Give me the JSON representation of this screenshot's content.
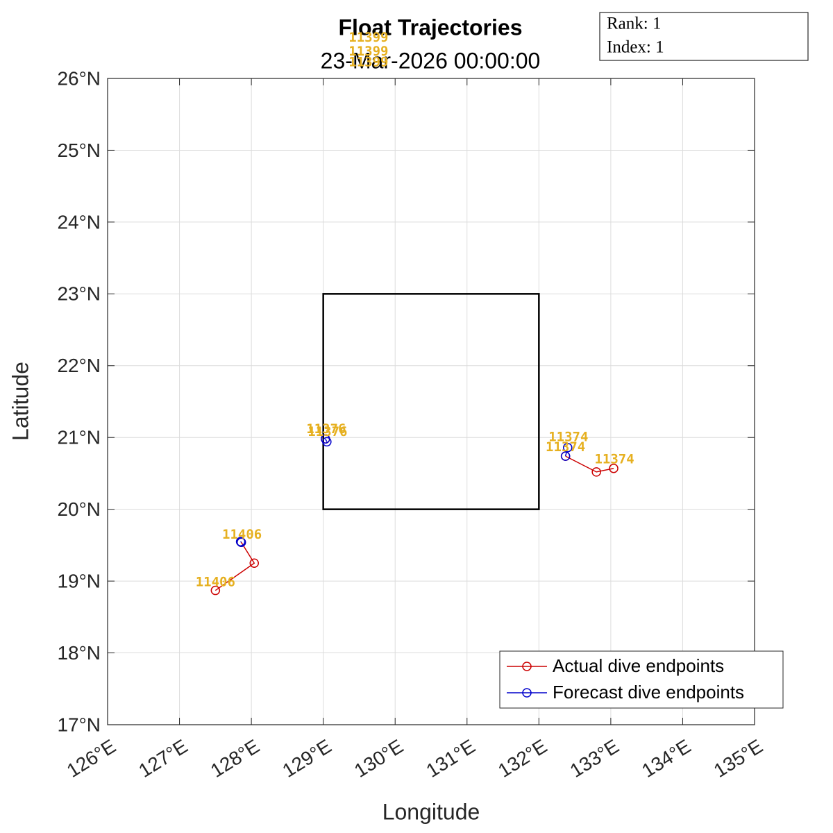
{
  "chart_data": {
    "type": "scatter",
    "title": "Float Trajectories",
    "subtitle": "23-Mar-2026 00:00:00",
    "x_label": "Longitude",
    "y_label": "Latitude",
    "xlim": [
      126,
      135
    ],
    "ylim": [
      17,
      26
    ],
    "xticks": [
      {
        "value": 126,
        "label": "126°E"
      },
      {
        "value": 127,
        "label": "127°E"
      },
      {
        "value": 128,
        "label": "128°E"
      },
      {
        "value": 129,
        "label": "129°E"
      },
      {
        "value": 130,
        "label": "130°E"
      },
      {
        "value": 131,
        "label": "131°E"
      },
      {
        "value": 132,
        "label": "132°E"
      },
      {
        "value": 133,
        "label": "133°E"
      },
      {
        "value": 134,
        "label": "134°E"
      },
      {
        "value": 135,
        "label": "135°E"
      }
    ],
    "yticks": [
      {
        "value": 17,
        "label": "17°N"
      },
      {
        "value": 18,
        "label": "18°N"
      },
      {
        "value": 19,
        "label": "19°N"
      },
      {
        "value": 20,
        "label": "20°N"
      },
      {
        "value": 21,
        "label": "21°N"
      },
      {
        "value": 22,
        "label": "22°N"
      },
      {
        "value": 23,
        "label": "23°N"
      },
      {
        "value": 24,
        "label": "24°N"
      },
      {
        "value": 25,
        "label": "25°N"
      },
      {
        "value": 26,
        "label": "26°N"
      }
    ],
    "grid": true,
    "legend_position": "southeast",
    "series": [
      {
        "name": "Actual dive endpoints",
        "color": "#cc0000",
        "x": [
          127.86,
          128.04,
          127.5,
          null,
          129.03,
          null,
          133.04,
          132.8,
          132.37
        ],
        "values": [
          19.54,
          19.25,
          18.87,
          null,
          20.98,
          null,
          20.57,
          20.52,
          20.74
        ]
      },
      {
        "name": "Forecast dive endpoints",
        "color": "#0000cc",
        "x": [
          127.86,
          127.85,
          null,
          129.03,
          129.05,
          null,
          132.37,
          132.4
        ],
        "values": [
          19.54,
          19.55,
          null,
          20.98,
          20.94,
          null,
          20.74,
          20.86
        ]
      }
    ],
    "region": {
      "lon": [
        129,
        132
      ],
      "lat": [
        20,
        23
      ],
      "color": "#000000"
    },
    "float_labels_color": "#e6b020",
    "float_labels": [
      {
        "text": "11406",
        "x": 127.5,
        "y": 18.93
      },
      {
        "text": "11406",
        "x": 127.87,
        "y": 19.59
      },
      {
        "text": "11376",
        "x": 129.04,
        "y": 21.06
      },
      {
        "text": "11376",
        "x": 129.06,
        "y": 21.02
      },
      {
        "text": "11374",
        "x": 132.41,
        "y": 20.95
      },
      {
        "text": "11374",
        "x": 132.37,
        "y": 20.81
      },
      {
        "text": "11374",
        "x": 133.05,
        "y": 20.64
      },
      {
        "text": "11399",
        "x": 129.63,
        "y": 26.51
      },
      {
        "text": "11399",
        "x": 129.63,
        "y": 26.32
      },
      {
        "text": "11399",
        "x": 129.63,
        "y": 26.17
      }
    ],
    "info": [
      "Rank: 1",
      "Index: 1"
    ]
  }
}
